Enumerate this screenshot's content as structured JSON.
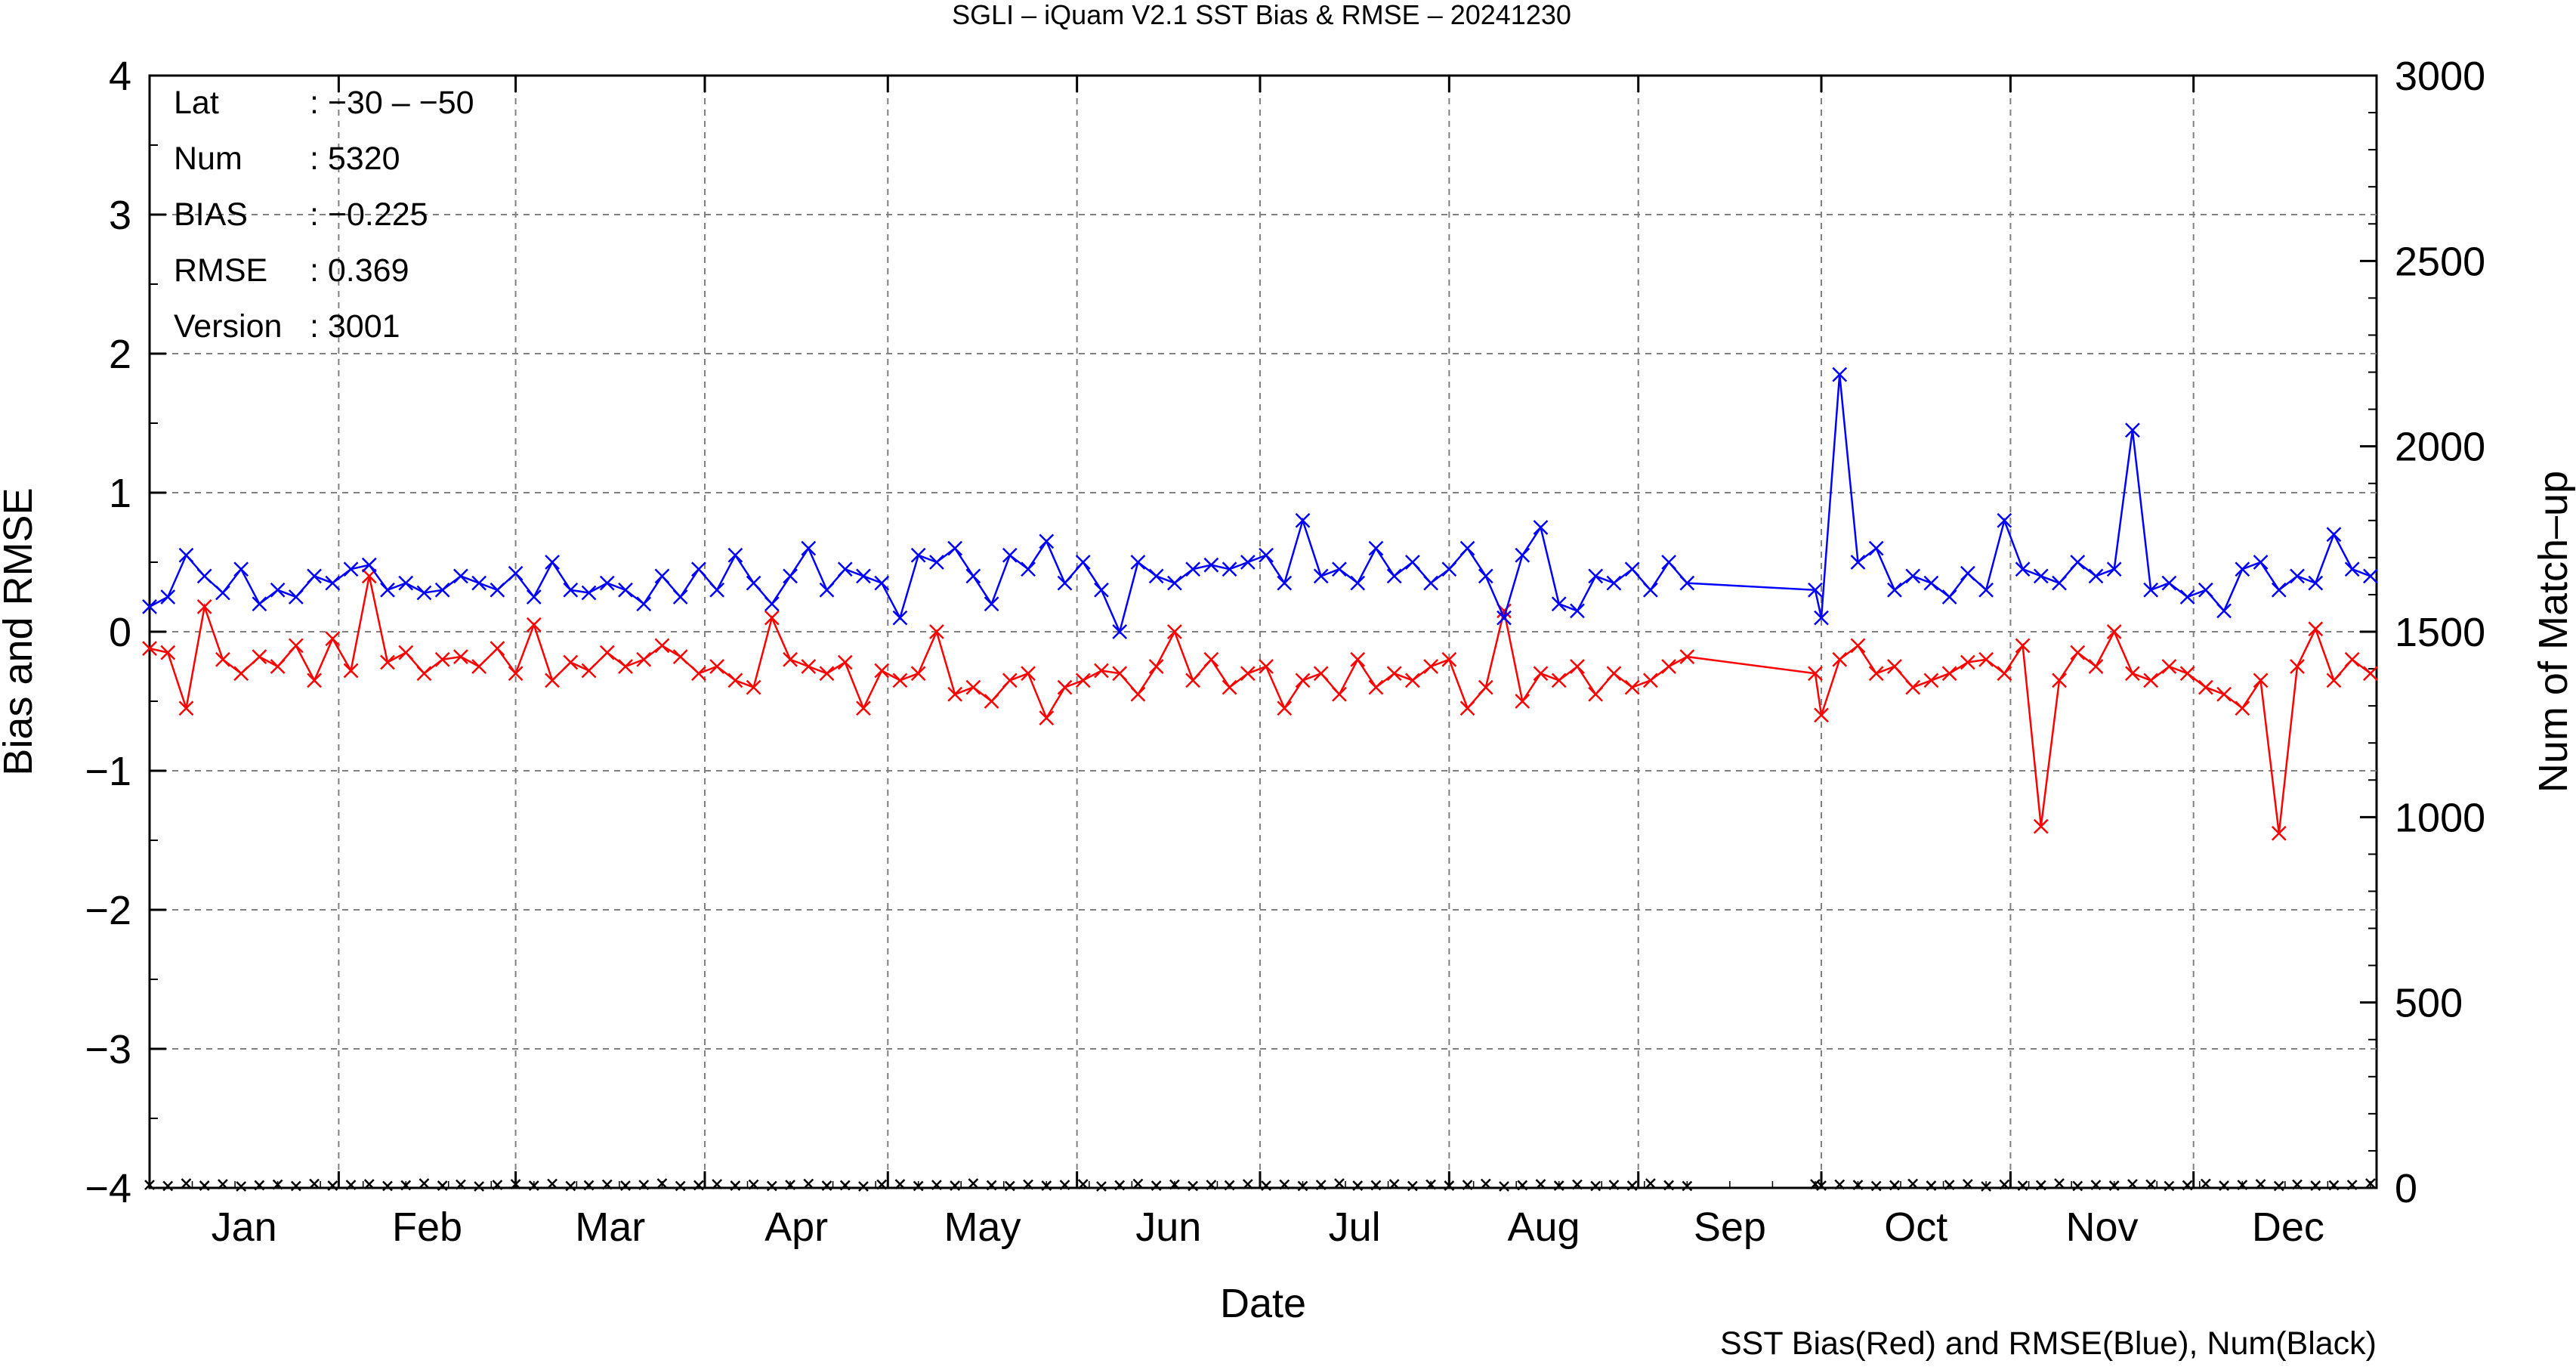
{
  "chart_data": {
    "type": "line",
    "title": "SGLI – iQuam V2.1 SST Bias & RMSE  – 20241230",
    "xlabel": "Date",
    "ylabel": "Bias and RMSE",
    "y2label": "Num of Match–up",
    "footer": "SST Bias(Red) and RMSE(Blue), Num(Black)",
    "ylim": [
      -4,
      4
    ],
    "y2lim": [
      0,
      3000
    ],
    "xlim": [
      "2024-01-01",
      "2024-12-31"
    ],
    "y_ticks": [
      "4",
      "3",
      "2",
      "1",
      "0",
      "−1",
      "−2",
      "−3",
      "−4"
    ],
    "y2_ticks": [
      "3000",
      "2500",
      "2000",
      "1500",
      "1000",
      "500",
      "0"
    ],
    "months": [
      "Jan",
      "Feb",
      "Mar",
      "Apr",
      "May",
      "Jun",
      "Jul",
      "Aug",
      "Sep",
      "Oct",
      "Nov",
      "Dec"
    ],
    "grid": true,
    "grid_style": "dashed",
    "info": [
      {
        "key": "Lat",
        "value": ": −30 – −50"
      },
      {
        "key": "Num",
        "value": ": 5320"
      },
      {
        "key": "BIAS",
        "value": ": −0.225"
      },
      {
        "key": "RMSE",
        "value": ": 0.369"
      },
      {
        "key": "Version",
        "value": ": 3001"
      }
    ],
    "x_dates": [
      "2024-01-01",
      "2024-01-04",
      "2024-01-07",
      "2024-01-10",
      "2024-01-13",
      "2024-01-16",
      "2024-01-19",
      "2024-01-22",
      "2024-01-25",
      "2024-01-28",
      "2024-01-31",
      "2024-02-03",
      "2024-02-06",
      "2024-02-09",
      "2024-02-12",
      "2024-02-15",
      "2024-02-18",
      "2024-02-21",
      "2024-02-24",
      "2024-02-27",
      "2024-03-01",
      "2024-03-04",
      "2024-03-07",
      "2024-03-10",
      "2024-03-13",
      "2024-03-16",
      "2024-03-19",
      "2024-03-22",
      "2024-03-25",
      "2024-03-28",
      "2024-03-31",
      "2024-04-03",
      "2024-04-06",
      "2024-04-09",
      "2024-04-12",
      "2024-04-15",
      "2024-04-18",
      "2024-04-21",
      "2024-04-24",
      "2024-04-27",
      "2024-04-30",
      "2024-05-03",
      "2024-05-06",
      "2024-05-09",
      "2024-05-12",
      "2024-05-15",
      "2024-05-18",
      "2024-05-21",
      "2024-05-24",
      "2024-05-27",
      "2024-05-30",
      "2024-06-02",
      "2024-06-05",
      "2024-06-08",
      "2024-06-11",
      "2024-06-14",
      "2024-06-17",
      "2024-06-20",
      "2024-06-23",
      "2024-06-26",
      "2024-06-29",
      "2024-07-02",
      "2024-07-05",
      "2024-07-08",
      "2024-07-11",
      "2024-07-14",
      "2024-07-17",
      "2024-07-20",
      "2024-07-23",
      "2024-07-26",
      "2024-07-29",
      "2024-08-01",
      "2024-08-04",
      "2024-08-07",
      "2024-08-10",
      "2024-08-13",
      "2024-08-16",
      "2024-08-19",
      "2024-08-22",
      "2024-08-25",
      "2024-08-28",
      "2024-08-31",
      "2024-09-03",
      "2024-09-06",
      "2024-09-09",
      "2024-09-30",
      "2024-10-01",
      "2024-10-04",
      "2024-10-07",
      "2024-10-10",
      "2024-10-13",
      "2024-10-16",
      "2024-10-19",
      "2024-10-22",
      "2024-10-25",
      "2024-10-28",
      "2024-10-31",
      "2024-11-03",
      "2024-11-06",
      "2024-11-09",
      "2024-11-12",
      "2024-11-15",
      "2024-11-18",
      "2024-11-21",
      "2024-11-24",
      "2024-11-27",
      "2024-11-30",
      "2024-12-03",
      "2024-12-06",
      "2024-12-09",
      "2024-12-12",
      "2024-12-15",
      "2024-12-18",
      "2024-12-21",
      "2024-12-24",
      "2024-12-27",
      "2024-12-30"
    ],
    "series": [
      {
        "name": "SST Bias",
        "color": "#ff0000",
        "marker": "x",
        "values": [
          -0.12,
          -0.15,
          -0.55,
          0.18,
          -0.2,
          -0.3,
          -0.18,
          -0.25,
          -0.1,
          -0.35,
          -0.05,
          -0.28,
          0.4,
          -0.22,
          -0.15,
          -0.3,
          -0.2,
          -0.18,
          -0.25,
          -0.12,
          -0.3,
          0.05,
          -0.35,
          -0.22,
          -0.28,
          -0.15,
          -0.25,
          -0.2,
          -0.1,
          -0.18,
          -0.3,
          -0.25,
          -0.35,
          -0.4,
          0.1,
          -0.2,
          -0.25,
          -0.3,
          -0.22,
          -0.55,
          -0.28,
          -0.35,
          -0.3,
          0.0,
          -0.45,
          -0.4,
          -0.5,
          -0.35,
          -0.3,
          -0.62,
          -0.4,
          -0.35,
          -0.28,
          -0.3,
          -0.45,
          -0.25,
          0.0,
          -0.35,
          -0.2,
          -0.4,
          -0.3,
          -0.25,
          -0.55,
          -0.35,
          -0.3,
          -0.45,
          -0.2,
          -0.4,
          -0.3,
          -0.35,
          -0.25,
          -0.2,
          -0.55,
          -0.4,
          0.15,
          -0.5,
          -0.3,
          -0.35,
          -0.25,
          -0.45,
          -0.3,
          -0.4,
          -0.35,
          -0.25,
          -0.18,
          -0.3,
          -0.6,
          -0.2,
          -0.1,
          -0.3,
          -0.25,
          -0.4,
          -0.35,
          -0.3,
          -0.22,
          -0.2,
          -0.3,
          -0.1,
          -1.4,
          -0.35,
          -0.15,
          -0.25,
          0.0,
          -0.3,
          -0.35,
          -0.25,
          -0.3,
          -0.4,
          -0.45,
          -0.55,
          -0.35,
          -1.45,
          -0.25,
          0.02,
          -0.35,
          -0.2,
          -0.3
        ]
      },
      {
        "name": "RMSE",
        "color": "#0000ff",
        "marker": "x",
        "values": [
          0.18,
          0.25,
          0.55,
          0.4,
          0.28,
          0.45,
          0.2,
          0.3,
          0.25,
          0.4,
          0.35,
          0.45,
          0.48,
          0.3,
          0.35,
          0.28,
          0.3,
          0.4,
          0.35,
          0.3,
          0.42,
          0.25,
          0.5,
          0.3,
          0.28,
          0.35,
          0.3,
          0.2,
          0.4,
          0.25,
          0.45,
          0.3,
          0.55,
          0.35,
          0.2,
          0.4,
          0.6,
          0.3,
          0.45,
          0.4,
          0.35,
          0.1,
          0.55,
          0.5,
          0.6,
          0.4,
          0.2,
          0.55,
          0.45,
          0.65,
          0.35,
          0.5,
          0.3,
          0.0,
          0.5,
          0.4,
          0.35,
          0.45,
          0.48,
          0.45,
          0.5,
          0.55,
          0.35,
          0.8,
          0.4,
          0.45,
          0.35,
          0.6,
          0.4,
          0.5,
          0.35,
          0.45,
          0.6,
          0.4,
          0.1,
          0.55,
          0.75,
          0.2,
          0.15,
          0.4,
          0.35,
          0.45,
          0.3,
          0.5,
          0.35,
          0.3,
          0.1,
          1.85,
          0.5,
          0.6,
          0.3,
          0.4,
          0.35,
          0.25,
          0.42,
          0.3,
          0.8,
          0.45,
          0.4,
          0.35,
          0.5,
          0.4,
          0.45,
          1.45,
          0.3,
          0.35,
          0.25,
          0.3,
          0.15,
          0.45,
          0.5,
          0.3,
          0.4,
          0.35,
          0.7,
          0.45,
          0.4
        ]
      },
      {
        "name": "Num",
        "color": "#000000",
        "marker": "x",
        "axis": "y2",
        "values": [
          8,
          5,
          12,
          6,
          10,
          4,
          7,
          9,
          5,
          11,
          6,
          8,
          10,
          5,
          7,
          12,
          6,
          9,
          4,
          8,
          10,
          6,
          11,
          5,
          7,
          9,
          6,
          8,
          12,
          5,
          7,
          10,
          6,
          9,
          5,
          8,
          11,
          6,
          7,
          4,
          9,
          10,
          5,
          8,
          6,
          12,
          7,
          5,
          9,
          6,
          8,
          10,
          4,
          7,
          11,
          6,
          9,
          5,
          8,
          7,
          10,
          6,
          9,
          5,
          8,
          12,
          6,
          7,
          10,
          5,
          9,
          6,
          8,
          11,
          4,
          7,
          10,
          6,
          9,
          5,
          8,
          6,
          12,
          7,
          5,
          10,
          6,
          9,
          8,
          5,
          7,
          11,
          6,
          8,
          10,
          4,
          9,
          6,
          7,
          12,
          5,
          8,
          6,
          10,
          9,
          5,
          7,
          11,
          6,
          8,
          10,
          5,
          9,
          6,
          7,
          8,
          12
        ]
      }
    ]
  }
}
